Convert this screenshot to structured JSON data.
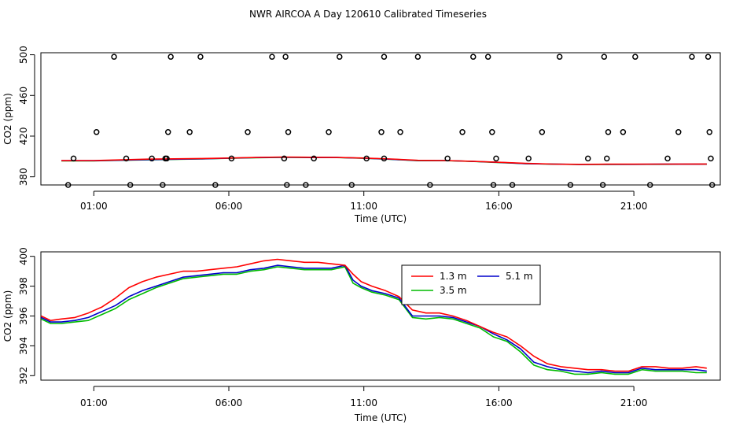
{
  "title": "NWR AIRCOA A  Day 120610  Calibrated Timeseries",
  "chart_data": [
    {
      "type": "line",
      "id": "top",
      "xlabel": "Time (UTC)",
      "ylabel": "CO2 (ppm)",
      "xlim": [
        -0.96,
        24.2
      ],
      "ylim": [
        372,
        502
      ],
      "xticks": [
        1,
        6,
        11,
        16,
        21
      ],
      "xtick_labels": [
        "01:00",
        "06:00",
        "11:00",
        "16:00",
        "21:00"
      ],
      "yticks": [
        380,
        420,
        460,
        500
      ],
      "ytick_labels": [
        "380",
        "420",
        "460",
        "500"
      ],
      "series": [
        {
          "name": "1.3 m",
          "color": "#ff0000",
          "x": [
            -0.2,
            1,
            3,
            5,
            6,
            7,
            8,
            9,
            10,
            11,
            12,
            13,
            14,
            15,
            16,
            17,
            18,
            19,
            20,
            21,
            22,
            23.7
          ],
          "y": [
            395.9,
            396.0,
            397.4,
            398.0,
            398.5,
            399.0,
            399.5,
            399.2,
            399.0,
            398.5,
            397.5,
            396.2,
            396.0,
            395.3,
            394.3,
            393.2,
            392.5,
            392.3,
            392.4,
            392.4,
            392.5,
            392.6
          ]
        },
        {
          "name": "3.5 m",
          "color": "#00cc00",
          "x": [
            -0.2,
            1,
            3,
            5,
            6,
            7,
            8,
            9,
            10,
            11,
            12,
            13,
            14,
            15,
            16,
            17,
            18,
            19,
            20,
            21,
            22,
            23.7
          ],
          "y": [
            395.7,
            395.7,
            396.7,
            397.6,
            398.2,
            398.8,
            399.1,
            398.9,
            398.9,
            398.2,
            397.2,
            395.8,
            395.9,
            395.1,
            394.0,
            392.9,
            392.4,
            392.1,
            392.2,
            392.3,
            392.3,
            392.4
          ]
        },
        {
          "name": "5.1 m",
          "color": "#0000cc",
          "x": [
            -0.2,
            1,
            3,
            5,
            6,
            7,
            8,
            9,
            10,
            11,
            12,
            13,
            14,
            15,
            16,
            17,
            18,
            19,
            20,
            21,
            22,
            23.7
          ],
          "y": [
            395.8,
            395.8,
            396.9,
            397.7,
            398.3,
            398.9,
            399.2,
            399.0,
            399.0,
            398.3,
            397.3,
            396.0,
            396.0,
            395.2,
            394.2,
            393.0,
            392.5,
            392.2,
            392.3,
            392.3,
            392.4,
            392.5
          ]
        }
      ],
      "points": {
        "name": "calibration",
        "x": [
          0.05,
          0.25,
          1.1,
          1.75,
          2.35,
          2.2,
          3.15,
          3.55,
          3.7,
          3.75,
          3.85,
          3.65,
          4.55,
          4.95,
          5.5,
          6.1,
          6.7,
          7.6,
          8.1,
          8.2,
          8.05,
          8.15,
          8.85,
          9.15,
          9.7,
          10.1,
          10.55,
          11.1,
          11.75,
          11.65,
          11.75,
          12.35,
          13.0,
          13.45,
          14.1,
          14.65,
          15.05,
          15.6,
          15.75,
          15.8,
          15.9,
          16.5,
          17.1,
          17.6,
          18.25,
          18.65,
          19.3,
          19.9,
          19.85,
          20.0,
          20.05,
          20.6,
          21.05,
          21.6,
          22.25,
          22.65,
          23.15,
          23.75,
          23.8,
          23.85,
          23.9
        ],
        "y": [
          372,
          398,
          424,
          498,
          372,
          398,
          398,
          372,
          398,
          424,
          498,
          398,
          424,
          498,
          372,
          398,
          424,
          498,
          498,
          424,
          398,
          372,
          372,
          398,
          424,
          498,
          372,
          398,
          498,
          424,
          398,
          424,
          498,
          372,
          398,
          424,
          498,
          498,
          424,
          372,
          398,
          372,
          398,
          424,
          498,
          372,
          398,
          498,
          372,
          398,
          424,
          424,
          498,
          372,
          398,
          424,
          498,
          498,
          424,
          398,
          372
        ]
      }
    },
    {
      "type": "line",
      "id": "bottom",
      "xlabel": "Time (UTC)",
      "ylabel": "CO2 (ppm)",
      "xlim": [
        -0.96,
        24.2
      ],
      "ylim": [
        391.7,
        400.3
      ],
      "xticks": [
        1,
        6,
        11,
        16,
        21
      ],
      "xtick_labels": [
        "01:00",
        "06:00",
        "11:00",
        "16:00",
        "21:00"
      ],
      "yticks": [
        392,
        394,
        396,
        398,
        400
      ],
      "ytick_labels": [
        "392",
        "394",
        "396",
        "398",
        "400"
      ],
      "legend": {
        "position": "top-center",
        "entries": [
          "1.3 m",
          "5.1 m",
          "3.5 m"
        ]
      },
      "series": [
        {
          "name": "1.3 m",
          "color": "#ff0000",
          "x": [
            -0.95,
            -0.6,
            -0.2,
            0.3,
            0.8,
            1.3,
            1.8,
            2.3,
            2.8,
            3.3,
            3.8,
            4.3,
            4.8,
            5.3,
            5.8,
            6.3,
            6.8,
            7.3,
            7.8,
            8.3,
            8.8,
            9.3,
            9.8,
            10.3,
            10.6,
            10.9,
            11.3,
            11.8,
            12.3,
            12.8,
            13.3,
            13.8,
            14.3,
            14.8,
            15.3,
            15.8,
            16.3,
            16.8,
            17.3,
            17.8,
            18.3,
            18.8,
            19.3,
            19.8,
            20.3,
            20.8,
            21.3,
            21.8,
            22.3,
            22.8,
            23.3,
            23.7
          ],
          "y": [
            396.0,
            395.7,
            395.8,
            395.9,
            396.2,
            396.6,
            397.2,
            397.9,
            398.3,
            398.6,
            398.8,
            399.0,
            399.0,
            399.1,
            399.2,
            399.3,
            399.5,
            399.7,
            399.8,
            399.7,
            399.6,
            399.6,
            399.5,
            399.4,
            398.8,
            398.3,
            398.0,
            397.7,
            397.3,
            396.4,
            396.2,
            396.2,
            396.0,
            395.7,
            395.3,
            394.9,
            394.6,
            394.0,
            393.3,
            392.8,
            392.6,
            392.5,
            392.4,
            392.4,
            392.3,
            392.3,
            392.6,
            392.6,
            392.5,
            392.5,
            392.6,
            392.5
          ]
        },
        {
          "name": "3.5 m",
          "color": "#00bb00",
          "x": [
            -0.95,
            -0.6,
            -0.2,
            0.3,
            0.8,
            1.3,
            1.8,
            2.3,
            2.8,
            3.3,
            3.8,
            4.3,
            4.8,
            5.3,
            5.8,
            6.3,
            6.8,
            7.3,
            7.8,
            8.3,
            8.8,
            9.3,
            9.8,
            10.3,
            10.6,
            10.9,
            11.3,
            11.8,
            12.3,
            12.8,
            13.3,
            13.8,
            14.3,
            14.8,
            15.3,
            15.8,
            16.3,
            16.8,
            17.3,
            17.8,
            18.3,
            18.8,
            19.3,
            19.8,
            20.3,
            20.8,
            21.3,
            21.8,
            22.3,
            22.8,
            23.3,
            23.7
          ],
          "y": [
            395.8,
            395.5,
            395.5,
            395.6,
            395.7,
            396.1,
            396.5,
            397.1,
            397.5,
            397.9,
            398.2,
            398.5,
            398.6,
            398.7,
            398.8,
            398.8,
            399.0,
            399.1,
            399.3,
            399.2,
            399.1,
            399.1,
            399.1,
            399.3,
            398.2,
            397.9,
            397.6,
            397.4,
            397.1,
            395.9,
            395.8,
            395.9,
            395.8,
            395.5,
            395.2,
            394.6,
            394.3,
            393.6,
            392.7,
            392.4,
            392.3,
            392.1,
            392.1,
            392.2,
            392.1,
            392.1,
            392.4,
            392.3,
            392.3,
            392.3,
            392.2,
            392.2
          ]
        },
        {
          "name": "5.1 m",
          "color": "#0000cc",
          "x": [
            -0.95,
            -0.6,
            -0.2,
            0.3,
            0.8,
            1.3,
            1.8,
            2.3,
            2.8,
            3.3,
            3.8,
            4.3,
            4.8,
            5.3,
            5.8,
            6.3,
            6.8,
            7.3,
            7.8,
            8.3,
            8.8,
            9.3,
            9.8,
            10.3,
            10.6,
            10.9,
            11.3,
            11.8,
            12.3,
            12.8,
            13.3,
            13.8,
            14.3,
            14.8,
            15.3,
            15.8,
            16.3,
            16.8,
            17.3,
            17.8,
            18.3,
            18.8,
            19.3,
            19.8,
            20.3,
            20.8,
            21.3,
            21.8,
            22.3,
            22.8,
            23.3,
            23.7
          ],
          "y": [
            395.9,
            395.6,
            395.6,
            395.7,
            395.9,
            396.3,
            396.7,
            397.3,
            397.7,
            398.0,
            398.3,
            398.6,
            398.7,
            398.8,
            398.9,
            398.9,
            399.1,
            399.2,
            399.4,
            399.3,
            399.2,
            399.2,
            399.2,
            399.4,
            398.4,
            398.0,
            397.7,
            397.5,
            397.2,
            396.0,
            396.0,
            396.0,
            395.9,
            395.6,
            395.3,
            394.8,
            394.4,
            393.8,
            392.9,
            392.6,
            392.4,
            392.3,
            392.2,
            392.3,
            392.2,
            392.2,
            392.5,
            392.4,
            392.4,
            392.4,
            392.4,
            392.3
          ]
        }
      ]
    }
  ]
}
